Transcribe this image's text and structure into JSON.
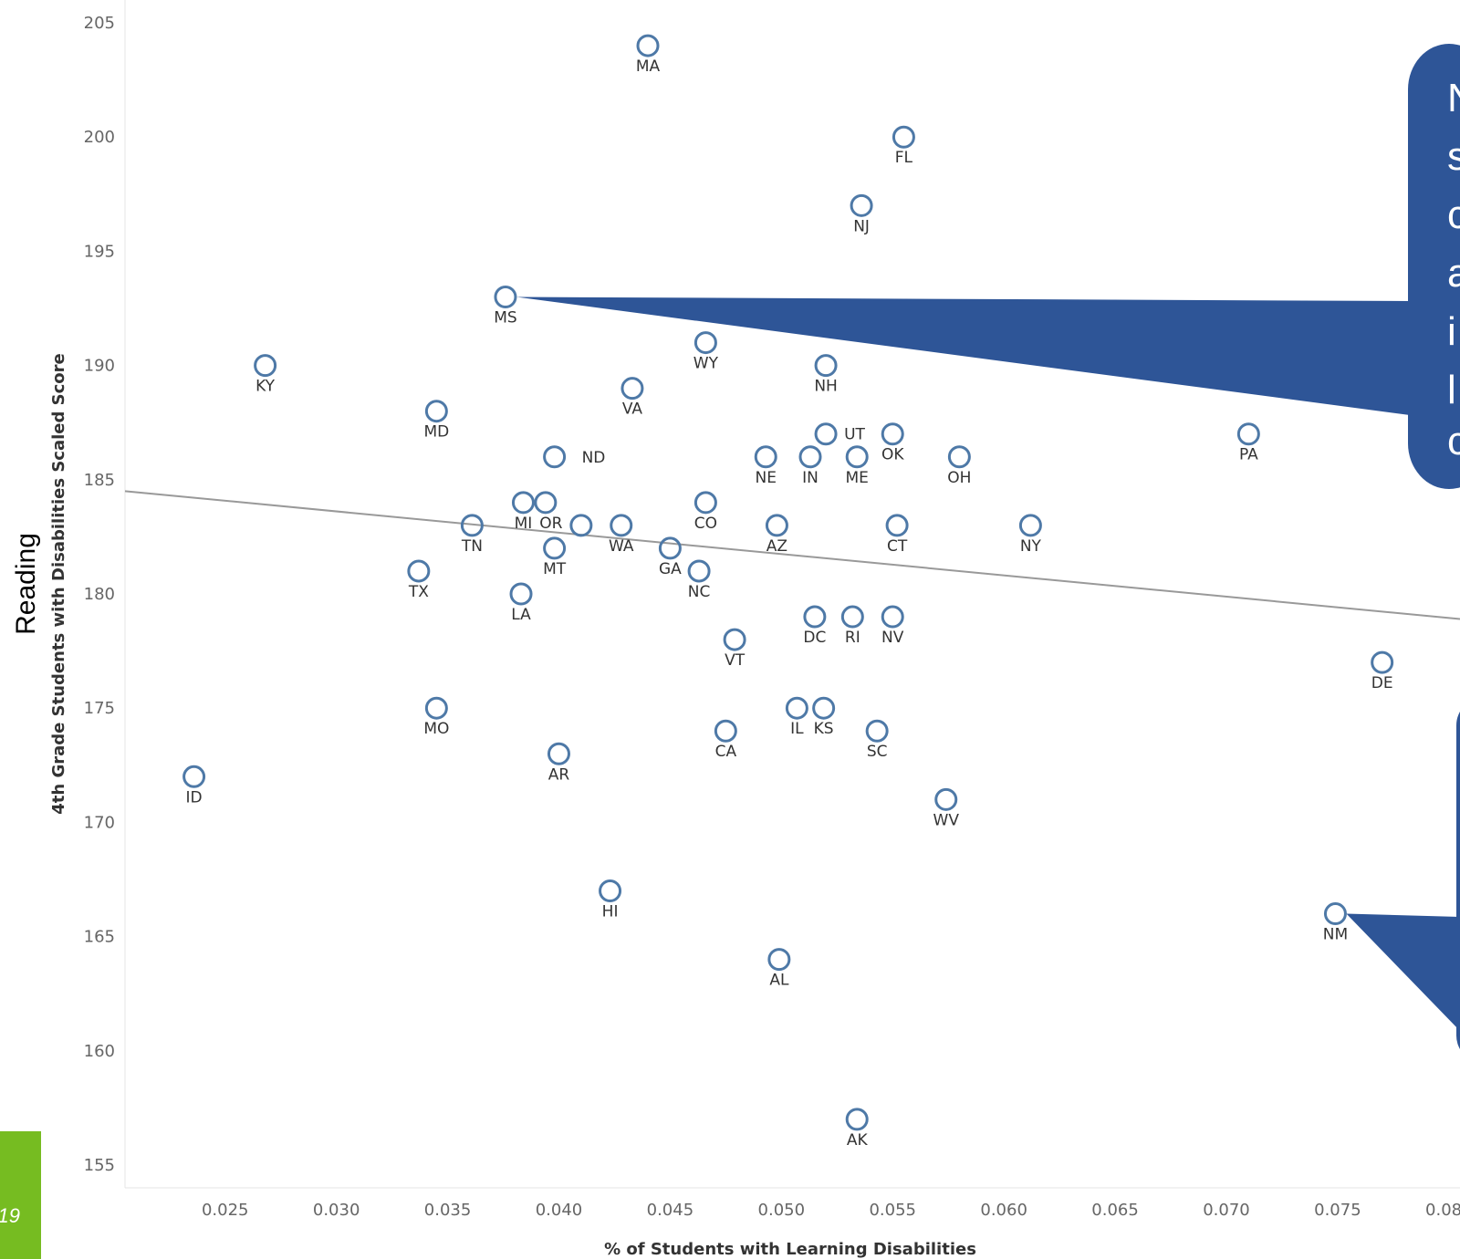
{
  "colors": {
    "point": "#4e79a7",
    "trend": "#999999",
    "callout": "#2e5597",
    "footer_block": "#76bc21"
  },
  "footer": {
    "page_number": "19"
  },
  "callouts": {
    "top": {
      "letters": [
        "N",
        "s",
        "c",
        "a",
        "i",
        "l",
        "c"
      ]
    }
  },
  "chart_data": {
    "type": "scatter",
    "ylabel_top": "Reading",
    "ylabel": "4th Grade Students with Disabilities Scaled Score",
    "xlabel": "% of Students with Learning Disabilities",
    "xlim": [
      0.0205,
      0.0805
    ],
    "ylim": [
      154,
      206
    ],
    "xticks": [
      0.025,
      0.03,
      0.035,
      0.04,
      0.045,
      0.05,
      0.055,
      0.06,
      0.065,
      0.07,
      0.075,
      0.08
    ],
    "yticks": [
      155,
      160,
      165,
      170,
      175,
      180,
      185,
      190,
      195,
      200,
      205
    ],
    "trendline": {
      "x": [
        0.0205,
        0.0805
      ],
      "y": [
        184.5,
        178.9
      ]
    },
    "grid": false,
    "points": [
      {
        "label": "MA",
        "x": 0.044,
        "y": 204
      },
      {
        "label": "FL",
        "x": 0.0555,
        "y": 200
      },
      {
        "label": "NJ",
        "x": 0.0536,
        "y": 197
      },
      {
        "label": "MS",
        "x": 0.0376,
        "y": 193
      },
      {
        "label": "WY",
        "x": 0.0466,
        "y": 191
      },
      {
        "label": "KY",
        "x": 0.0268,
        "y": 190
      },
      {
        "label": "NH",
        "x": 0.052,
        "y": 190
      },
      {
        "label": "VA",
        "x": 0.0433,
        "y": 189
      },
      {
        "label": "MD",
        "x": 0.0345,
        "y": 188
      },
      {
        "label": "UT",
        "x": 0.052,
        "y": 187
      },
      {
        "label": "OK",
        "x": 0.055,
        "y": 187
      },
      {
        "label": "PA",
        "x": 0.071,
        "y": 187
      },
      {
        "label": "ND",
        "x": 0.0398,
        "y": 186
      },
      {
        "label": "NE",
        "x": 0.0493,
        "y": 186
      },
      {
        "label": "IN",
        "x": 0.0513,
        "y": 186
      },
      {
        "label": "ME",
        "x": 0.0534,
        "y": 186
      },
      {
        "label": "OH",
        "x": 0.058,
        "y": 186
      },
      {
        "label": "MI",
        "x": 0.0384,
        "y": 184
      },
      {
        "label": "OR",
        "x": 0.0394,
        "y": 184
      },
      {
        "label": "CO",
        "x": 0.0466,
        "y": 184
      },
      {
        "label": "TN",
        "x": 0.0361,
        "y": 183
      },
      {
        "label": "",
        "x": 0.041,
        "y": 183
      },
      {
        "label": "WA",
        "x": 0.0428,
        "y": 183
      },
      {
        "label": "AZ",
        "x": 0.0498,
        "y": 183
      },
      {
        "label": "CT",
        "x": 0.0552,
        "y": 183
      },
      {
        "label": "NY",
        "x": 0.0612,
        "y": 183
      },
      {
        "label": "MT",
        "x": 0.0398,
        "y": 182
      },
      {
        "label": "GA",
        "x": 0.045,
        "y": 182
      },
      {
        "label": "TX",
        "x": 0.0337,
        "y": 181
      },
      {
        "label": "NC",
        "x": 0.0463,
        "y": 181
      },
      {
        "label": "LA",
        "x": 0.0383,
        "y": 180
      },
      {
        "label": "DC",
        "x": 0.0515,
        "y": 179
      },
      {
        "label": "RI",
        "x": 0.0532,
        "y": 179
      },
      {
        "label": "NV",
        "x": 0.055,
        "y": 179
      },
      {
        "label": "VT",
        "x": 0.0479,
        "y": 178
      },
      {
        "label": "DE",
        "x": 0.077,
        "y": 177
      },
      {
        "label": "MO",
        "x": 0.0345,
        "y": 175
      },
      {
        "label": "IL",
        "x": 0.0507,
        "y": 175
      },
      {
        "label": "KS",
        "x": 0.0519,
        "y": 175
      },
      {
        "label": "CA",
        "x": 0.0475,
        "y": 174
      },
      {
        "label": "SC",
        "x": 0.0543,
        "y": 174
      },
      {
        "label": "AR",
        "x": 0.04,
        "y": 173
      },
      {
        "label": "ID",
        "x": 0.0236,
        "y": 172
      },
      {
        "label": "WV",
        "x": 0.0574,
        "y": 171
      },
      {
        "label": "HI",
        "x": 0.0423,
        "y": 167
      },
      {
        "label": "NM",
        "x": 0.0749,
        "y": 166
      },
      {
        "label": "AL",
        "x": 0.0499,
        "y": 164
      },
      {
        "label": "AK",
        "x": 0.0534,
        "y": 157
      }
    ]
  }
}
